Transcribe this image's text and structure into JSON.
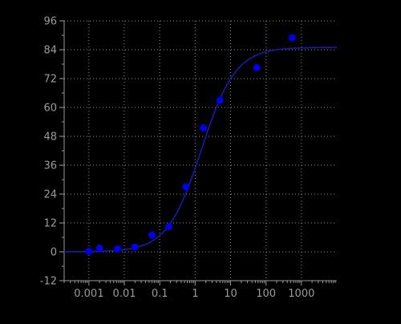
{
  "chart_data": {
    "type": "scatter",
    "x_scale": "log",
    "xlim": [
      0.0002,
      10000
    ],
    "ylim": [
      -12,
      96
    ],
    "x_ticks": [
      {
        "value": 0.001,
        "label": "0.001"
      },
      {
        "value": 0.01,
        "label": "0.01"
      },
      {
        "value": 0.1,
        "label": "0.1"
      },
      {
        "value": 1,
        "label": "1"
      },
      {
        "value": 10,
        "label": "10"
      },
      {
        "value": 100,
        "label": "100"
      },
      {
        "value": 1000,
        "label": "1000"
      }
    ],
    "y_ticks": [
      {
        "value": -12,
        "label": "-12"
      },
      {
        "value": 0,
        "label": "0"
      },
      {
        "value": 12,
        "label": "12"
      },
      {
        "value": 24,
        "label": "24"
      },
      {
        "value": 36,
        "label": "36"
      },
      {
        "value": 48,
        "label": "48"
      },
      {
        "value": 60,
        "label": "60"
      },
      {
        "value": 72,
        "label": "72"
      },
      {
        "value": 84,
        "label": "84"
      },
      {
        "value": 96,
        "label": "96"
      }
    ],
    "grid": true,
    "points": [
      {
        "x": 0.001,
        "y": 0.2
      },
      {
        "x": 0.002,
        "y": 1.5
      },
      {
        "x": 0.0065,
        "y": 1.2
      },
      {
        "x": 0.02,
        "y": 2.0
      },
      {
        "x": 0.06,
        "y": 7.0
      },
      {
        "x": 0.18,
        "y": 10.5
      },
      {
        "x": 0.55,
        "y": 27.0
      },
      {
        "x": 1.7,
        "y": 51.5
      },
      {
        "x": 5.0,
        "y": 63.0
      },
      {
        "x": 55,
        "y": 76.5
      },
      {
        "x": 550,
        "y": 89.0
      }
    ],
    "fit_curve": {
      "type": "four-parameter-logistic",
      "bottom": 0,
      "top": 85,
      "ec50": 1.5,
      "hill": 0.9
    },
    "colors": {
      "background": "#000000",
      "axis": "#9a9a9a",
      "grid": "#8a8a8a",
      "tick_label": "#9a9a9a",
      "point": "#0000ee",
      "curve": "#1a1aaa"
    }
  }
}
